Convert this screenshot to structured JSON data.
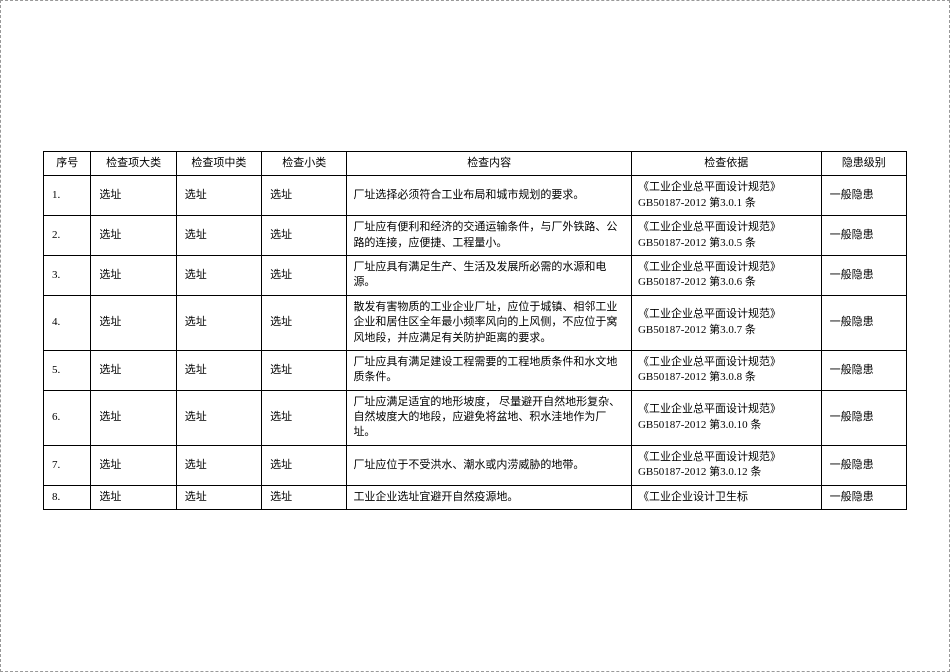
{
  "table": {
    "headers": {
      "no": "序号",
      "cat1": "检查项大类",
      "cat2": "检查项中类",
      "cat3": "检查小类",
      "content": "检查内容",
      "basis": "检查依据",
      "level": "隐患级别"
    },
    "rows": [
      {
        "no": "1.",
        "cat1": "选址",
        "cat2": "选址",
        "cat3": "选址",
        "content": "厂址选择必须符合工业布局和城市规划的要求。",
        "basis": "《工业企业总平面设计规范》GB50187-2012 第3.0.1 条",
        "level": "一般隐患"
      },
      {
        "no": "2.",
        "cat1": "选址",
        "cat2": "选址",
        "cat3": "选址",
        "content": "厂址应有便利和经济的交通运输条件，与厂外铁路、公路的连接，应便捷、工程量小。",
        "basis": "《工业企业总平面设计规范》GB50187-2012 第3.0.5 条",
        "level": "一般隐患"
      },
      {
        "no": "3.",
        "cat1": "选址",
        "cat2": "选址",
        "cat3": "选址",
        "content": "厂址应具有满足生产、生活及发展所必需的水源和电源。",
        "basis": "《工业企业总平面设计规范》GB50187-2012 第3.0.6 条",
        "level": "一般隐患"
      },
      {
        "no": "4.",
        "cat1": "选址",
        "cat2": "选址",
        "cat3": "选址",
        "content": "散发有害物质的工业企业厂址，应位于城镇、相邻工业企业和居住区全年最小频率风向的上风侧，不应位于窝风地段，并应满足有关防护距离的要求。",
        "basis": "《工业企业总平面设计规范》GB50187-2012 第3.0.7 条",
        "level": "一般隐患"
      },
      {
        "no": "5.",
        "cat1": "选址",
        "cat2": "选址",
        "cat3": "选址",
        "content": "厂址应具有满足建设工程需要的工程地质条件和水文地质条件。",
        "basis": "《工业企业总平面设计规范》GB50187-2012 第3.0.8 条",
        "level": "一般隐患"
      },
      {
        "no": "6.",
        "cat1": "选址",
        "cat2": "选址",
        "cat3": "选址",
        "content": "厂址应满足适宜的地形坡度， 尽量避开自然地形复杂、 自然坡度大的地段，应避免将盆地、积水洼地作为厂址。",
        "basis": "《工业企业总平面设计规范》GB50187-2012 第3.0.10 条",
        "level": "一般隐患"
      },
      {
        "no": "7.",
        "cat1": "选址",
        "cat2": "选址",
        "cat3": "选址",
        "content": "厂址应位于不受洪水、潮水或内涝威胁的地带。",
        "basis": "《工业企业总平面设计规范》GB50187-2012 第3.0.12 条",
        "level": "一般隐患"
      },
      {
        "no": "8.",
        "cat1": "选址",
        "cat2": "选址",
        "cat3": "选址",
        "content": "工业企业选址宜避开自然疫源地。",
        "basis": "《工业企业设计卫生标",
        "level": "一般隐患"
      }
    ]
  }
}
